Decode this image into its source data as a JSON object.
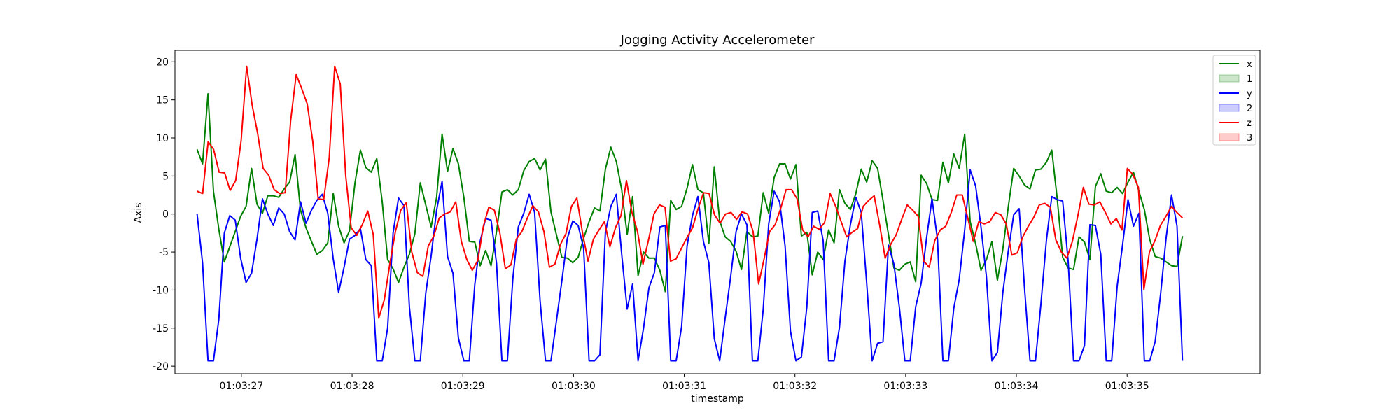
{
  "chart_data": {
    "type": "line",
    "title": "Jogging Activity Accelerometer",
    "xlabel": "timestamp",
    "ylabel": "Axis",
    "ylim": [
      -21,
      21.5
    ],
    "xlim": [
      "01:03:26.400",
      "01:03:36.200"
    ],
    "x_ticks": [
      "01:03:27",
      "01:03:28",
      "01:03:29",
      "01:03:30",
      "01:03:31",
      "01:03:32",
      "01:03:33",
      "01:03:34",
      "01:03:35"
    ],
    "y_ticks": [
      20,
      15,
      10,
      5,
      0,
      -5,
      -10,
      -15,
      -20
    ],
    "grid": false,
    "legend_position": "top-right",
    "x_start": "01:03:26.600",
    "x_end": "01:03:35.500",
    "series": [
      {
        "name": "x",
        "color": "#008000",
        "values": [
          8.5,
          6.6,
          15.8,
          3.0,
          -2.0,
          -6.3,
          -4.3,
          -2.3,
          -0.3,
          1.0,
          6.0,
          1.3,
          0.1,
          2.4,
          2.4,
          2.2,
          3.3,
          4.2,
          7.8,
          0.5,
          -1.8,
          -3.6,
          -5.3,
          -4.8,
          -3.8,
          2.7,
          -1.6,
          -3.8,
          -2.2,
          4.1,
          8.4,
          6.1,
          5.5,
          7.3,
          1.6,
          -6.0,
          -7.2,
          -9.0,
          -7.0,
          -5.3,
          -2.6,
          4.1,
          1.2,
          -1.7,
          2.2,
          10.5,
          5.6,
          8.6,
          6.6,
          2.2,
          -3.6,
          -3.7,
          -6.8,
          -4.8,
          -6.8,
          -2.3,
          2.9,
          3.2,
          2.5,
          3.2,
          5.7,
          6.9,
          7.3,
          5.8,
          7.2,
          0.3,
          -2.7,
          -5.7,
          -5.8,
          -6.4,
          -5.7,
          -3.2,
          -1.0,
          0.8,
          0.4,
          5.9,
          8.8,
          6.9,
          3.2,
          -2.7,
          2.3,
          -8.1,
          -5.0,
          -5.8,
          -5.8,
          -7.4,
          -10.2,
          1.8,
          0.6,
          1.0,
          3.4,
          6.5,
          3.2,
          2.8,
          -3.9,
          6.2,
          -0.9,
          -3.0,
          -3.6,
          -4.9,
          -7.3,
          -2.3,
          -3.0,
          -2.9,
          2.8,
          0.1,
          4.8,
          6.6,
          6.6,
          4.6,
          6.5,
          -2.9,
          -2.4,
          -8.0,
          -5.0,
          -6.0,
          -2.1,
          -3.8,
          3.2,
          1.4,
          0.6,
          2.7,
          5.9,
          4.2,
          7.0,
          6.0,
          1.8,
          -2.7,
          -7.1,
          -7.4,
          -6.6,
          -6.3,
          -8.9,
          5.1,
          4.0,
          1.9,
          1.8,
          6.8,
          4.1,
          7.9,
          6.0,
          10.5,
          -1.0,
          -3.9,
          -7.4,
          -6.0,
          -3.6,
          -8.7,
          -4.7,
          0.9,
          6.0,
          5.0,
          3.8,
          3.3,
          5.8,
          5.9,
          6.8,
          8.4,
          2.0,
          -5.7,
          -7.1,
          -7.3,
          -3.0,
          -3.7,
          -6.0,
          3.6,
          5.3,
          3.0,
          2.8,
          3.5,
          2.7,
          4.2,
          5.5,
          3.0,
          0.6,
          -3.4,
          -5.6,
          -5.8,
          -6.3,
          -6.8,
          -6.9,
          -2.9
        ]
      },
      {
        "name": "1",
        "color": "#008000",
        "fill_opacity": 0.2,
        "values": []
      },
      {
        "name": "y",
        "color": "#0000ff",
        "values": [
          0.0,
          -6.4,
          -19.3,
          -19.3,
          -13.8,
          -2.5,
          -0.2,
          -0.8,
          -5.8,
          -9.0,
          -7.8,
          -3.3,
          2.0,
          0.0,
          -1.5,
          0.8,
          0.0,
          -2.3,
          -3.4,
          1.6,
          -1.2,
          0.5,
          1.8,
          2.6,
          0.1,
          -5.9,
          -10.3,
          -7.0,
          -3.3,
          -2.8,
          -1.9,
          -6.0,
          -6.8,
          -19.3,
          -19.3,
          -15.0,
          -2.5,
          2.1,
          1.1,
          -12.2,
          -19.3,
          -19.3,
          -10.4,
          -5.5,
          0.5,
          4.3,
          -5.6,
          -7.8,
          -16.3,
          -19.3,
          -19.3,
          -9.3,
          -3.6,
          -0.6,
          -0.8,
          -6.5,
          -19.3,
          -19.3,
          -8.5,
          -1.7,
          0.1,
          2.6,
          0.2,
          -11.4,
          -19.3,
          -19.3,
          -14.1,
          -8.8,
          -3.2,
          -0.9,
          -1.5,
          -4.5,
          -19.3,
          -19.3,
          -18.5,
          -2.4,
          1.0,
          2.6,
          -5.3,
          -12.5,
          -9.2,
          -19.3,
          -15.0,
          -9.7,
          -7.7,
          -1.7,
          -1.5,
          -19.3,
          -19.3,
          -14.8,
          -4.2,
          -0.2,
          2.3,
          -3.6,
          -6.4,
          -16.4,
          -19.3,
          -13.7,
          -8.3,
          -2.3,
          0.0,
          -1.4,
          -19.3,
          -19.3,
          -12.5,
          -1.3,
          3.0,
          1.6,
          -4.2,
          -15.4,
          -19.3,
          -18.8,
          -12.2,
          0.2,
          0.4,
          -3.5,
          -19.3,
          -19.3,
          -14.9,
          -6.2,
          -1.4,
          2.2,
          0.2,
          -9.1,
          -19.3,
          -17.0,
          -16.8,
          -4.1,
          -6.6,
          -12.3,
          -19.3,
          -19.3,
          -12.2,
          -9.1,
          -3.1,
          2.0,
          -3.3,
          -19.3,
          -19.3,
          -12.4,
          -8.6,
          -2.1,
          5.8,
          3.7,
          -1.7,
          -8.3,
          -19.3,
          -18.2,
          -10.4,
          -4.9,
          -0.1,
          0.7,
          -9.9,
          -19.3,
          -19.3,
          -11.8,
          -3.5,
          2.3,
          1.9,
          1.7,
          -6.2,
          -19.3,
          -19.3,
          -17.3,
          -1.4,
          -1.5,
          -5.3,
          -19.3,
          -19.3,
          -9.5,
          -4.1,
          1.9,
          -1.6,
          0.1,
          -19.3,
          -19.3,
          -16.7,
          -10.4,
          -3.1,
          2.5,
          -1.6,
          -19.3
        ]
      },
      {
        "name": "2",
        "color": "#0000ff",
        "fill_opacity": 0.2,
        "values": []
      },
      {
        "name": "z",
        "color": "#ff0000",
        "values": [
          3.0,
          2.7,
          9.5,
          8.5,
          5.5,
          5.4,
          3.1,
          4.4,
          9.6,
          19.4,
          14.3,
          10.6,
          6.0,
          5.1,
          3.2,
          2.7,
          2.8,
          12.3,
          18.3,
          16.5,
          14.5,
          9.6,
          2.0,
          1.9,
          7.4,
          19.4,
          17.1,
          5.0,
          -1.8,
          -2.8,
          -1.4,
          0.4,
          -2.7,
          -13.7,
          -11.3,
          -6.6,
          -2.4,
          0.5,
          1.5,
          -5.0,
          -7.7,
          -8.2,
          -4.2,
          -2.9,
          -0.5,
          0.0,
          0.3,
          1.6,
          -3.6,
          -6.0,
          -7.4,
          -6.1,
          -1.6,
          0.9,
          0.5,
          -2.5,
          -7.2,
          -6.7,
          -3.3,
          -2.3,
          -0.5,
          1.1,
          0.3,
          -2.3,
          -7.0,
          -6.6,
          -4.0,
          -2.6,
          1.0,
          2.1,
          -2.4,
          -6.2,
          -3.3,
          -2.1,
          -1.0,
          -4.3,
          -1.8,
          -0.2,
          4.4,
          0.2,
          -2.3,
          -6.6,
          -3.4,
          0.0,
          1.2,
          0.9,
          -6.2,
          -5.9,
          -4.5,
          -3.1,
          -1.8,
          0.7,
          2.8,
          2.7,
          -0.1,
          -1.2,
          0.0,
          0.2,
          -0.7,
          0.3,
          0.0,
          -2.3,
          -9.2,
          -5.9,
          -2.3,
          -1.4,
          0.7,
          3.2,
          3.2,
          2.0,
          -2.1,
          -3.0,
          -1.6,
          -2.0,
          -1.1,
          2.7,
          1.0,
          -1.0,
          -3.0,
          -2.4,
          -1.9,
          1.0,
          1.8,
          2.4,
          -1.5,
          -5.8,
          -4.0,
          -2.7,
          -0.7,
          1.2,
          0.5,
          -0.3,
          -6.2,
          -7.0,
          -3.5,
          -2.1,
          -1.6,
          0.2,
          2.5,
          2.5,
          -0.5,
          -3.6,
          -1.0,
          -1.3,
          -1.0,
          0.2,
          -0.1,
          -1.3,
          -5.4,
          -5.1,
          -3.0,
          -1.6,
          -0.4,
          1.2,
          1.4,
          0.9,
          -3.4,
          -5.0,
          -5.8,
          -3.6,
          -0.2,
          3.5,
          1.3,
          1.2,
          1.6,
          0.2,
          -1.3,
          -0.6,
          -2.1,
          6.0,
          5.2,
          3.5,
          -9.9,
          -5.0,
          -3.5,
          -1.5,
          -0.3,
          1.0,
          0.2,
          -0.5
        ]
      },
      {
        "name": "3",
        "color": "#ff0000",
        "fill_opacity": 0.2,
        "values": []
      }
    ]
  }
}
